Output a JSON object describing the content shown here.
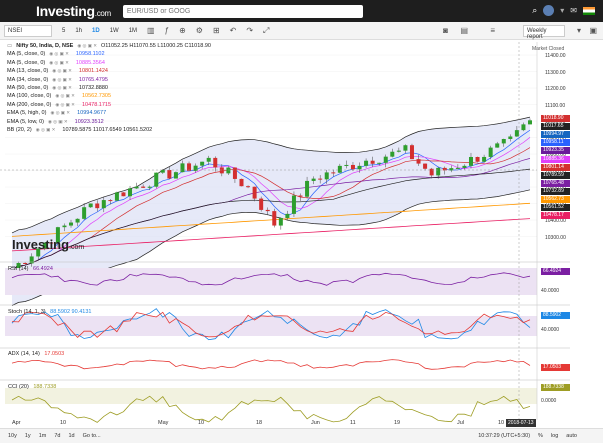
{
  "header": {
    "logo": "Investing",
    "logo_suffix": ".com",
    "search_placeholder": "EUR/USD or GOOG"
  },
  "toolbar": {
    "symbol": "NSEI",
    "timeframes": [
      "5",
      "1h",
      "1D",
      "1W",
      "1M"
    ],
    "active_timeframe": "1D",
    "weekly_report": "Weekly report"
  },
  "legend": {
    "title": "Nifty 50, India, D, NSE",
    "ohlc": "O11052.25  H11070.55  L11000.25  C11018.90",
    "rows": [
      {
        "label": "MA (5, close, 0)",
        "value": "10958.1102",
        "color": "#2962ff"
      },
      {
        "label": "MA (5, close, 0)",
        "value": "10885.3564",
        "color": "#e040fb"
      },
      {
        "label": "MA (13, close, 0)",
        "value": "10801.1424",
        "color": "#d32f2f"
      },
      {
        "label": "MA (34, close, 0)",
        "value": "10765.4795",
        "color": "#7b1fa2"
      },
      {
        "label": "MA (50, close, 0)",
        "value": "10732.8880",
        "color": "#222222"
      },
      {
        "label": "MA (100, close, 0)",
        "value": "10562.7305",
        "color": "#ff9800"
      },
      {
        "label": "MA (200, close, 0)",
        "value": "10478.1715",
        "color": "#e91e63"
      },
      {
        "label": "EMA (5, high, 0)",
        "value": "10994.9677",
        "color": "#1565c0"
      },
      {
        "label": "EMA (5, low, 0)",
        "value": "10923.3512",
        "color": "#6a1b9a"
      },
      {
        "label": "BB (20, 2)",
        "value": "10789.5875  11017.6549  10561.5202",
        "color": "#222222"
      }
    ],
    "market_status": "Market Closed"
  },
  "price_axis": [
    "11400.00",
    "11300.00",
    "11200.00",
    "11100.00",
    "11000.00",
    "10900.00",
    "10800.00",
    "10700.00",
    "10600.00",
    "10500.00",
    "10400.00",
    "10300.00"
  ],
  "price_tags": [
    {
      "v": "11018.90",
      "c": "#d32f2f"
    },
    {
      "v": "11017.65",
      "c": "#222"
    },
    {
      "v": "10994.97",
      "c": "#1565c0"
    },
    {
      "v": "10958.11",
      "c": "#2962ff"
    },
    {
      "v": "10923.35",
      "c": "#6a1b9a"
    },
    {
      "v": "10885.36",
      "c": "#e040fb"
    },
    {
      "v": "10801.14",
      "c": "#d32f2f"
    },
    {
      "v": "10789.59",
      "c": "#222"
    },
    {
      "v": "10765.48",
      "c": "#7b1fa2"
    },
    {
      "v": "10732.89",
      "c": "#222"
    },
    {
      "v": "10562.73",
      "c": "#ff9800"
    },
    {
      "v": "10561.52",
      "c": "#222"
    },
    {
      "v": "10478.17",
      "c": "#e91e63"
    }
  ],
  "indicators": [
    {
      "label": "RSI (14)",
      "value": "66.4924",
      "axis": "40.0000"
    },
    {
      "label": "Stoch (14, 1, 3)",
      "value": "88.5902  90.4131",
      "axis": "40.0000",
      "axis_value": "88.5902"
    },
    {
      "label": "ADX (14, 14)",
      "value": "17.0503",
      "axis_value": "17.0503"
    },
    {
      "label": "CCI (20)",
      "value": "188.7338",
      "axis_value": "188.7338",
      "axis": "0.0000"
    }
  ],
  "x_labels": [
    "Apr",
    "10",
    "May",
    "10",
    "18",
    "Jun",
    "11",
    "19",
    "Jul",
    "10"
  ],
  "date_tag": "2018-07-13",
  "bottom": {
    "ranges": [
      "10y",
      "1y",
      "1m",
      "7d",
      "1d",
      "Go to..."
    ],
    "clock": "10:37:29 (UTC+5:30)",
    "opts": [
      "%",
      "log",
      "auto"
    ]
  },
  "chart_data": {
    "type": "candlestick",
    "symbol": "Nifty 50",
    "ylim": [
      10250,
      11450
    ],
    "last_close": 11018.9
  }
}
